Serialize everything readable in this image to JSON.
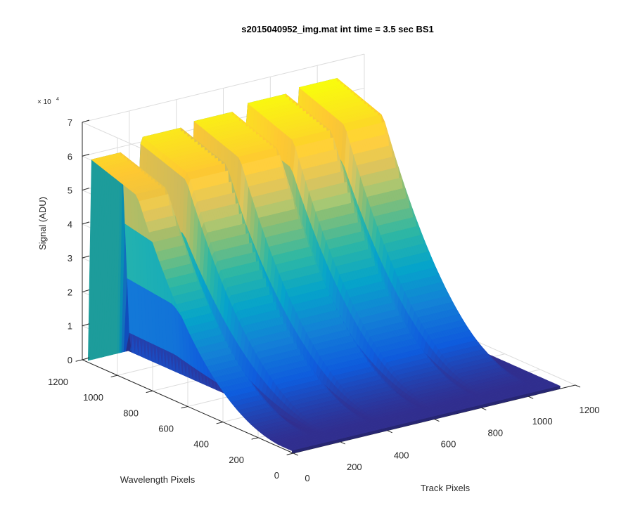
{
  "chart_data": {
    "type": "surface",
    "title": "s2015040952_img.mat int time = 3.5 sec   BS1",
    "zlabel": "Signal (ADU)",
    "xlabel": "Track Pixels",
    "ylabel": "Wavelength Pixels",
    "z_exponent_label": "× 10",
    "z_exponent_power": "4",
    "z_ticks": [
      "0",
      "1",
      "2",
      "3",
      "4",
      "5",
      "6",
      "7"
    ],
    "x_ticks": [
      "0",
      "200",
      "400",
      "600",
      "800",
      "1000",
      "1200"
    ],
    "y_ticks": [
      "0",
      "200",
      "400",
      "600",
      "800",
      "1000",
      "1200"
    ],
    "xlim": [
      0,
      1200
    ],
    "ylim": [
      0,
      1200
    ],
    "zlim": [
      0,
      70000
    ],
    "grid": true,
    "colormap": "parula",
    "colors": [
      "#352a87",
      "#0f5cdd",
      "#1481d6",
      "#06a4ca",
      "#2eb7a4",
      "#87bf77",
      "#d1bb59",
      "#fec832",
      "#f9fb0e"
    ],
    "series": [
      {
        "track_center": 40,
        "peak": 60000
      },
      {
        "track_center": 290,
        "peak": 63000
      },
      {
        "track_center": 515,
        "peak": 64000
      },
      {
        "track_center": 740,
        "peak": 65500
      },
      {
        "track_center": 960,
        "peak": 66500
      }
    ]
  }
}
